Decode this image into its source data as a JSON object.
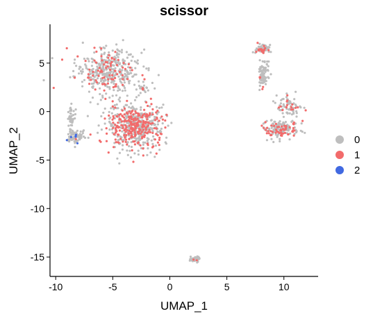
{
  "chart_data": {
    "type": "scatter",
    "title": "scissor",
    "xlabel": "UMAP_1",
    "ylabel": "UMAP_2",
    "xlim": [
      -10.5,
      13
    ],
    "ylim": [
      -17,
      9
    ],
    "xticks": [
      -10,
      -5,
      0,
      5,
      10
    ],
    "yticks": [
      5,
      0,
      -5,
      -10,
      -15
    ],
    "xtick_labels": [
      "-10",
      "-5",
      "0",
      "5",
      "10"
    ],
    "ytick_labels": [
      "5",
      "0",
      "-5",
      "-10",
      "-15"
    ],
    "grid": false,
    "legend_position": "right",
    "series": [
      {
        "name": "0",
        "color": "#BEBEBE"
      },
      {
        "name": "1",
        "color": "#F26B6B"
      },
      {
        "name": "2",
        "color": "#4169E1"
      }
    ],
    "clusters": [
      {
        "label": "upper-left",
        "center": [
          -5.5,
          4.2
        ],
        "spread": [
          2.3,
          1.9
        ],
        "points": 420,
        "share": [
          0.82,
          0.18,
          0
        ]
      },
      {
        "label": "upper-mid",
        "center": [
          -2.4,
          2.4
        ],
        "spread": [
          0.5,
          0.35
        ],
        "points": 25,
        "share": [
          0.9,
          0.1,
          0
        ]
      },
      {
        "label": "left-stem",
        "center": [
          -8.7,
          -0.6
        ],
        "spread": [
          0.3,
          1.2
        ],
        "points": 40,
        "share": [
          1.0,
          0,
          0
        ]
      },
      {
        "label": "left-tail",
        "center": [
          -8.3,
          -2.6
        ],
        "spread": [
          0.7,
          0.6
        ],
        "points": 80,
        "share": [
          0.88,
          0.02,
          0.1
        ]
      },
      {
        "label": "main-center",
        "center": [
          -3.0,
          -1.5
        ],
        "spread": [
          2.1,
          1.9
        ],
        "points": 620,
        "share": [
          0.62,
          0.38,
          0
        ]
      },
      {
        "label": "right-top",
        "center": [
          8.1,
          6.4
        ],
        "spread": [
          0.45,
          0.4
        ],
        "points": 70,
        "share": [
          0.8,
          0.2,
          0
        ]
      },
      {
        "label": "right-neck",
        "center": [
          8.2,
          3.8
        ],
        "spread": [
          0.35,
          1.3
        ],
        "points": 90,
        "share": [
          0.95,
          0.05,
          0
        ]
      },
      {
        "label": "right-arm",
        "center": [
          10.5,
          0.5
        ],
        "spread": [
          0.9,
          0.9
        ],
        "points": 80,
        "share": [
          0.8,
          0.2,
          0
        ]
      },
      {
        "label": "right-bottom",
        "center": [
          9.7,
          -1.8
        ],
        "spread": [
          1.3,
          0.8
        ],
        "points": 170,
        "share": [
          0.65,
          0.35,
          0
        ]
      },
      {
        "label": "isolated",
        "center": [
          2.2,
          -15.2
        ],
        "spread": [
          0.35,
          0.3
        ],
        "points": 40,
        "share": [
          0.85,
          0.15,
          0
        ]
      }
    ]
  }
}
